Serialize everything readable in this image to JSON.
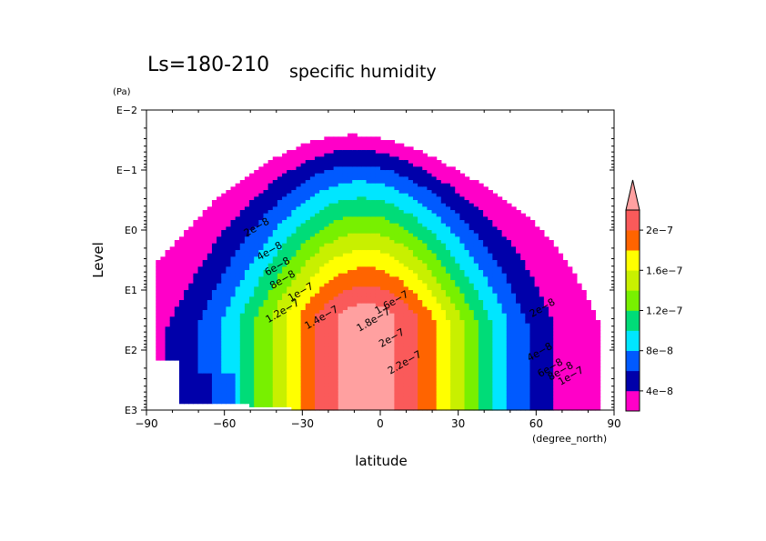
{
  "chart_data": {
    "type": "contour",
    "title": "Ls=180-210",
    "subtitle": "specific humidity",
    "xlabel": "latitude",
    "xunit": "(degree_north)",
    "ylabel": "Level",
    "yunit": "(Pa)",
    "xlim": [
      -90,
      90
    ],
    "ylim": [
      0.01,
      1000
    ],
    "y_scale": "log",
    "x_ticks": [
      {
        "value": -90,
        "label": "−90"
      },
      {
        "value": -60,
        "label": "−60"
      },
      {
        "value": -30,
        "label": "−30"
      },
      {
        "value": 0,
        "label": "0"
      },
      {
        "value": 30,
        "label": "30"
      },
      {
        "value": 60,
        "label": "60"
      },
      {
        "value": 90,
        "label": "90"
      }
    ],
    "y_ticks": [
      {
        "value": 0.01,
        "label": "E−2"
      },
      {
        "value": 0.1,
        "label": "E−1"
      },
      {
        "value": 1,
        "label": "E0"
      },
      {
        "value": 10,
        "label": "E1"
      },
      {
        "value": 100,
        "label": "E2"
      },
      {
        "value": 1000,
        "label": "E3"
      }
    ],
    "levels": [
      {
        "value": 2e-08,
        "color": "#ff00c8"
      },
      {
        "value": 4e-08,
        "color": "#0000aa"
      },
      {
        "value": 6e-08,
        "color": "#005aff"
      },
      {
        "value": 8e-08,
        "color": "#00e6ff"
      },
      {
        "value": 1e-07,
        "color": "#00dc78"
      },
      {
        "value": 1.2e-07,
        "color": "#78f000"
      },
      {
        "value": 1.4e-07,
        "color": "#c8f000"
      },
      {
        "value": 1.6e-07,
        "color": "#ffff00"
      },
      {
        "value": 1.8e-07,
        "color": "#ff6400"
      },
      {
        "value": 2e-07,
        "color": "#fa5a5a"
      },
      {
        "value": 2.2e-07,
        "color": "#ffa0a0"
      }
    ],
    "colorbar": {
      "labels": [
        {
          "value": 4e-08,
          "label": "4e−8"
        },
        {
          "value": 8e-08,
          "label": "8e−8"
        },
        {
          "value": 1.2e-07,
          "label": "1.2e−7"
        },
        {
          "value": 1.6e-07,
          "label": "1.6e−7"
        },
        {
          "value": 2e-07,
          "label": "2e−7"
        }
      ]
    },
    "contour_labels": [
      {
        "text": "2e−8",
        "lat": -47,
        "p": 1.0
      },
      {
        "text": "4e−8",
        "lat": -42,
        "p": 2.5
      },
      {
        "text": "6e−8",
        "lat": -39,
        "p": 4.5
      },
      {
        "text": "8e−8",
        "lat": -37,
        "p": 7.5
      },
      {
        "text": "1e−7",
        "lat": -30,
        "p": 12
      },
      {
        "text": "1.2e−7",
        "lat": -37,
        "p": 25
      },
      {
        "text": "1.4e−7",
        "lat": -22,
        "p": 32
      },
      {
        "text": "1.6e−7",
        "lat": 5,
        "p": 18
      },
      {
        "text": "1.8e−7",
        "lat": -2,
        "p": 35
      },
      {
        "text": "2e−7",
        "lat": 5,
        "p": 70
      },
      {
        "text": "2.2e−7",
        "lat": 10,
        "p": 180
      },
      {
        "text": "2e−8",
        "lat": 63,
        "p": 22
      },
      {
        "text": "4e−8",
        "lat": 62,
        "p": 120
      },
      {
        "text": "6e−8",
        "lat": 66,
        "p": 220
      },
      {
        "text": "8e−8",
        "lat": 70,
        "p": 250
      },
      {
        "text": "1e−7",
        "lat": 74,
        "p": 300
      }
    ]
  }
}
